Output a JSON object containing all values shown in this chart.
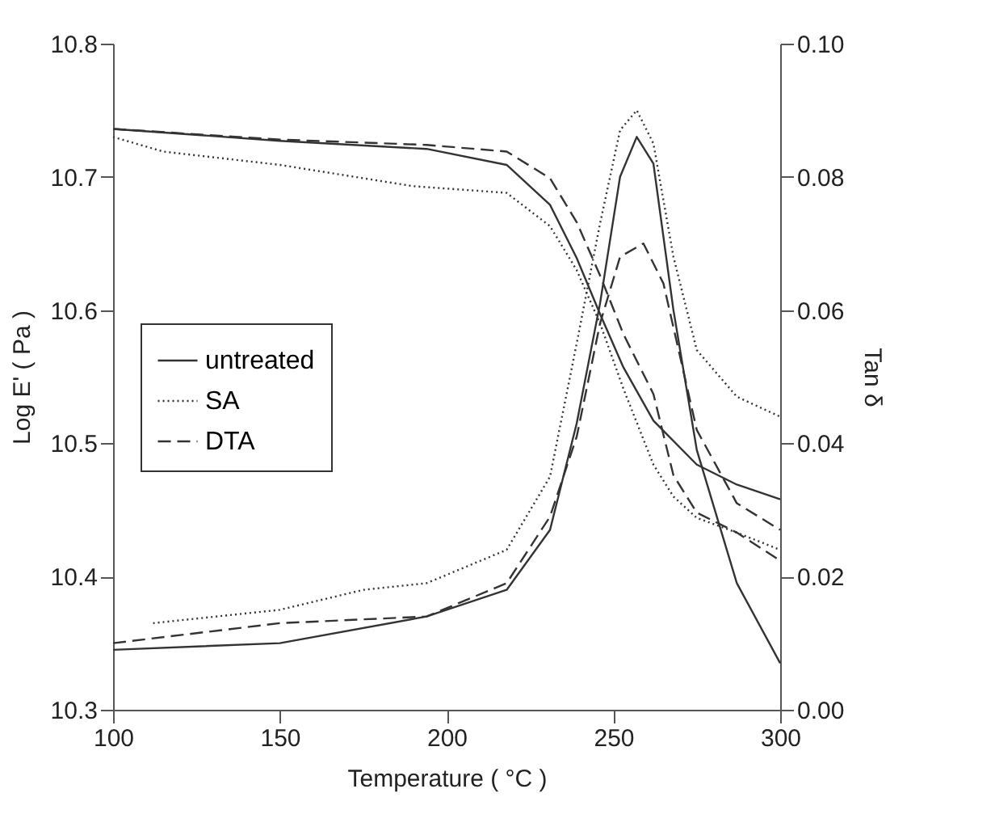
{
  "chart_data": {
    "type": "line",
    "xlabel": "Temperature ( °C )",
    "ylabel": "Log E' ( Pa )",
    "y2label": "Tan δ",
    "xlim": [
      100,
      300
    ],
    "xticks": [
      100,
      150,
      200,
      250,
      300
    ],
    "ylim": [
      10.3,
      10.8
    ],
    "yticks": [
      10.3,
      10.4,
      10.5,
      10.6,
      10.7,
      10.8
    ],
    "y2lim": [
      0,
      0.1
    ],
    "y2ticks": [
      {
        "value": 0,
        "label": "0.00"
      },
      {
        "value": 0.02,
        "label": "0.02"
      },
      {
        "value": 0.04,
        "label": "0.04"
      },
      {
        "value": 0.06,
        "label": "0.06"
      },
      {
        "value": 0.08,
        "label": "0.08"
      },
      {
        "value": 0.1,
        "label": "0.10"
      }
    ],
    "grid": false,
    "legend": "left",
    "marker": "none",
    "series": [
      {
        "name": "untreated",
        "color": "#333333",
        "line_style": "solid",
        "x": [
          100,
          150,
          194,
          218,
          231,
          239,
          246,
          253,
          262,
          275,
          287,
          300
        ],
        "values": [
          10.736,
          10.727,
          10.721,
          10.709,
          10.679,
          10.639,
          10.597,
          10.557,
          10.517,
          10.484,
          10.469,
          10.458
        ]
      },
      {
        "name": "SA",
        "color": "#333333",
        "line_style": "dotted",
        "x": [
          100,
          115,
          150,
          190,
          218,
          231,
          239,
          246,
          253,
          262,
          268,
          275,
          287,
          300
        ],
        "values": [
          10.73,
          10.719,
          10.709,
          10.693,
          10.688,
          10.663,
          10.63,
          10.59,
          10.541,
          10.484,
          10.46,
          10.444,
          10.433,
          10.42
        ]
      },
      {
        "name": "DTA",
        "color": "#333333",
        "line_style": "dashed",
        "x": [
          100,
          150,
          194,
          218,
          231,
          239,
          246,
          253,
          262,
          268,
          275,
          287,
          300
        ],
        "values": [
          10.736,
          10.728,
          10.724,
          10.719,
          10.699,
          10.666,
          10.626,
          10.582,
          10.537,
          10.476,
          10.448,
          10.433,
          10.412
        ]
      },
      {
        "color": "#333333",
        "line_style": "solid",
        "axis": "y2",
        "x": [
          100,
          150,
          194,
          218,
          231,
          239,
          246,
          252,
          257,
          262,
          268,
          275,
          287,
          300
        ],
        "values": [
          0.009,
          0.01,
          0.014,
          0.018,
          0.027,
          0.043,
          0.061,
          0.08,
          0.086,
          0.082,
          0.06,
          0.039,
          0.019,
          0.007
        ]
      },
      {
        "color": "#333333",
        "line_style": "dotted",
        "axis": "y2",
        "x": [
          112,
          150,
          175,
          194,
          218,
          231,
          239,
          246,
          252,
          257,
          262,
          268,
          275,
          287,
          300
        ],
        "values": [
          0.013,
          0.015,
          0.018,
          0.019,
          0.024,
          0.035,
          0.055,
          0.073,
          0.087,
          0.09,
          0.085,
          0.068,
          0.054,
          0.047,
          0.044
        ]
      },
      {
        "color": "#333333",
        "line_style": "dashed",
        "axis": "y2",
        "x": [
          100,
          150,
          194,
          218,
          231,
          239,
          246,
          252,
          259,
          265,
          275,
          287,
          300
        ],
        "values": [
          0.01,
          0.013,
          0.014,
          0.019,
          0.029,
          0.041,
          0.058,
          0.068,
          0.07,
          0.064,
          0.042,
          0.031,
          0.027
        ]
      }
    ]
  }
}
